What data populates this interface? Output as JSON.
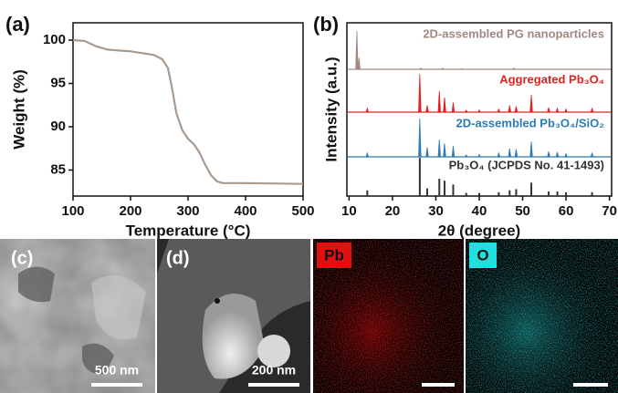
{
  "chart_data": [
    {
      "type": "line",
      "label": "(a)",
      "xlabel": "Temperature (°C)",
      "ylabel": "Weight (%)",
      "color": "#a89a8e",
      "x": [
        100,
        120,
        140,
        160,
        200,
        240,
        255,
        265,
        272,
        280,
        290,
        300,
        310,
        320,
        330,
        340,
        350,
        360,
        400,
        500
      ],
      "values": [
        100,
        99.9,
        99.3,
        98.9,
        98.7,
        98.3,
        97.8,
        96.8,
        94.5,
        91.5,
        89.6,
        88.6,
        88.0,
        87.0,
        85.6,
        84.4,
        83.7,
        83.5,
        83.5,
        83.4
      ],
      "xlim": [
        100,
        500
      ],
      "ylim": [
        82,
        102
      ],
      "xticks": [
        100,
        200,
        300,
        400,
        500
      ],
      "yticks": [
        85,
        90,
        95,
        100
      ]
    },
    {
      "type": "xrd",
      "label": "(b)",
      "xlabel": "2θ (degree)",
      "ylabel": "Intensity (a.u.)",
      "xlim": [
        9.5,
        70.5
      ],
      "xticks": [
        10,
        20,
        30,
        40,
        50,
        60,
        70
      ],
      "series": [
        {
          "name": "2D-assembled PG nanoparticles",
          "color": "#a08a80",
          "style": "trace",
          "x": [
            11.8,
            12.3,
            26.5,
            31.5,
            36,
            48
          ],
          "values": [
            100,
            30,
            3,
            3,
            2,
            3
          ]
        },
        {
          "name": "Aggregated Pb₃O₄",
          "color": "#e0211f",
          "style": "trace",
          "x": [
            14.2,
            26.3,
            28.0,
            30.8,
            32.0,
            34.0,
            37.0,
            40.0,
            44.5,
            47.0,
            48.5,
            52.0,
            56.0,
            58.0,
            60.0,
            66.0
          ],
          "values": [
            10,
            100,
            18,
            55,
            38,
            25,
            5,
            6,
            8,
            18,
            15,
            45,
            12,
            10,
            8,
            10
          ]
        },
        {
          "name": "2D-assembled Pb₃O₄/SiO₂",
          "color": "#2b7bb9",
          "style": "trace",
          "x": [
            14.2,
            26.3,
            28.0,
            30.8,
            32.0,
            34.0,
            37.0,
            40.0,
            44.5,
            47.0,
            48.5,
            52.0,
            56.0,
            58.0,
            60.0,
            66.0
          ],
          "values": [
            10,
            100,
            25,
            45,
            35,
            28,
            5,
            6,
            10,
            22,
            20,
            40,
            14,
            12,
            8,
            10
          ]
        },
        {
          "name": "Pb₃O₄ (JCPDS No. 41-1493)",
          "color": "#333333",
          "style": "sticks",
          "x": [
            14.2,
            26.3,
            28.0,
            30.8,
            32.0,
            34.0,
            37.0,
            40.0,
            44.5,
            47.0,
            48.5,
            52.0,
            56.0,
            58.0,
            60.0,
            66.0
          ],
          "values": [
            15,
            100,
            20,
            45,
            40,
            30,
            8,
            8,
            10,
            15,
            18,
            35,
            12,
            12,
            10,
            10
          ]
        }
      ]
    }
  ],
  "micrographs": [
    {
      "label": "(c)",
      "scale_bar": "500 nm"
    },
    {
      "label": "(d)",
      "scale_bar": "200 nm"
    },
    {
      "label": "Pb"
    },
    {
      "label": "O"
    }
  ]
}
